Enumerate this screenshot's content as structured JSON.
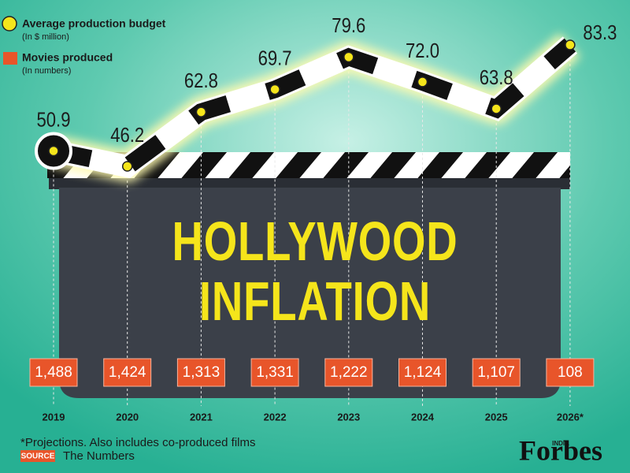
{
  "chart_data": {
    "type": "line",
    "title": "HOLLYWOOD INFLATION",
    "categories": [
      "2019",
      "2020",
      "2021",
      "2022",
      "2023",
      "2024",
      "2025",
      "2026*"
    ],
    "series": [
      {
        "name": "Average production budget",
        "unit": "(In $ million)",
        "color": "#f5e51b",
        "values": [
          50.9,
          46.2,
          62.8,
          69.7,
          79.6,
          72.0,
          63.8,
          83.3
        ],
        "value_labels": [
          "50.9",
          "46.2",
          "62.8",
          "69.7",
          "79.6",
          "72.0",
          "63.8",
          "83.3"
        ]
      },
      {
        "name": "Movies produced",
        "unit": "(In numbers)",
        "color": "#e8552a",
        "values": [
          1488,
          1424,
          1313,
          1331,
          1222,
          1124,
          1107,
          108
        ],
        "value_labels": [
          "1,488",
          "1,424",
          "1,313",
          "1,331",
          "1,222",
          "1,124",
          "1,107",
          "108"
        ]
      }
    ],
    "note": "*Projections. Also includes co-produced films",
    "source_label": "SOURCE",
    "source": "The Numbers"
  },
  "brand": {
    "name": "Forbes",
    "edition": "INDIA"
  }
}
